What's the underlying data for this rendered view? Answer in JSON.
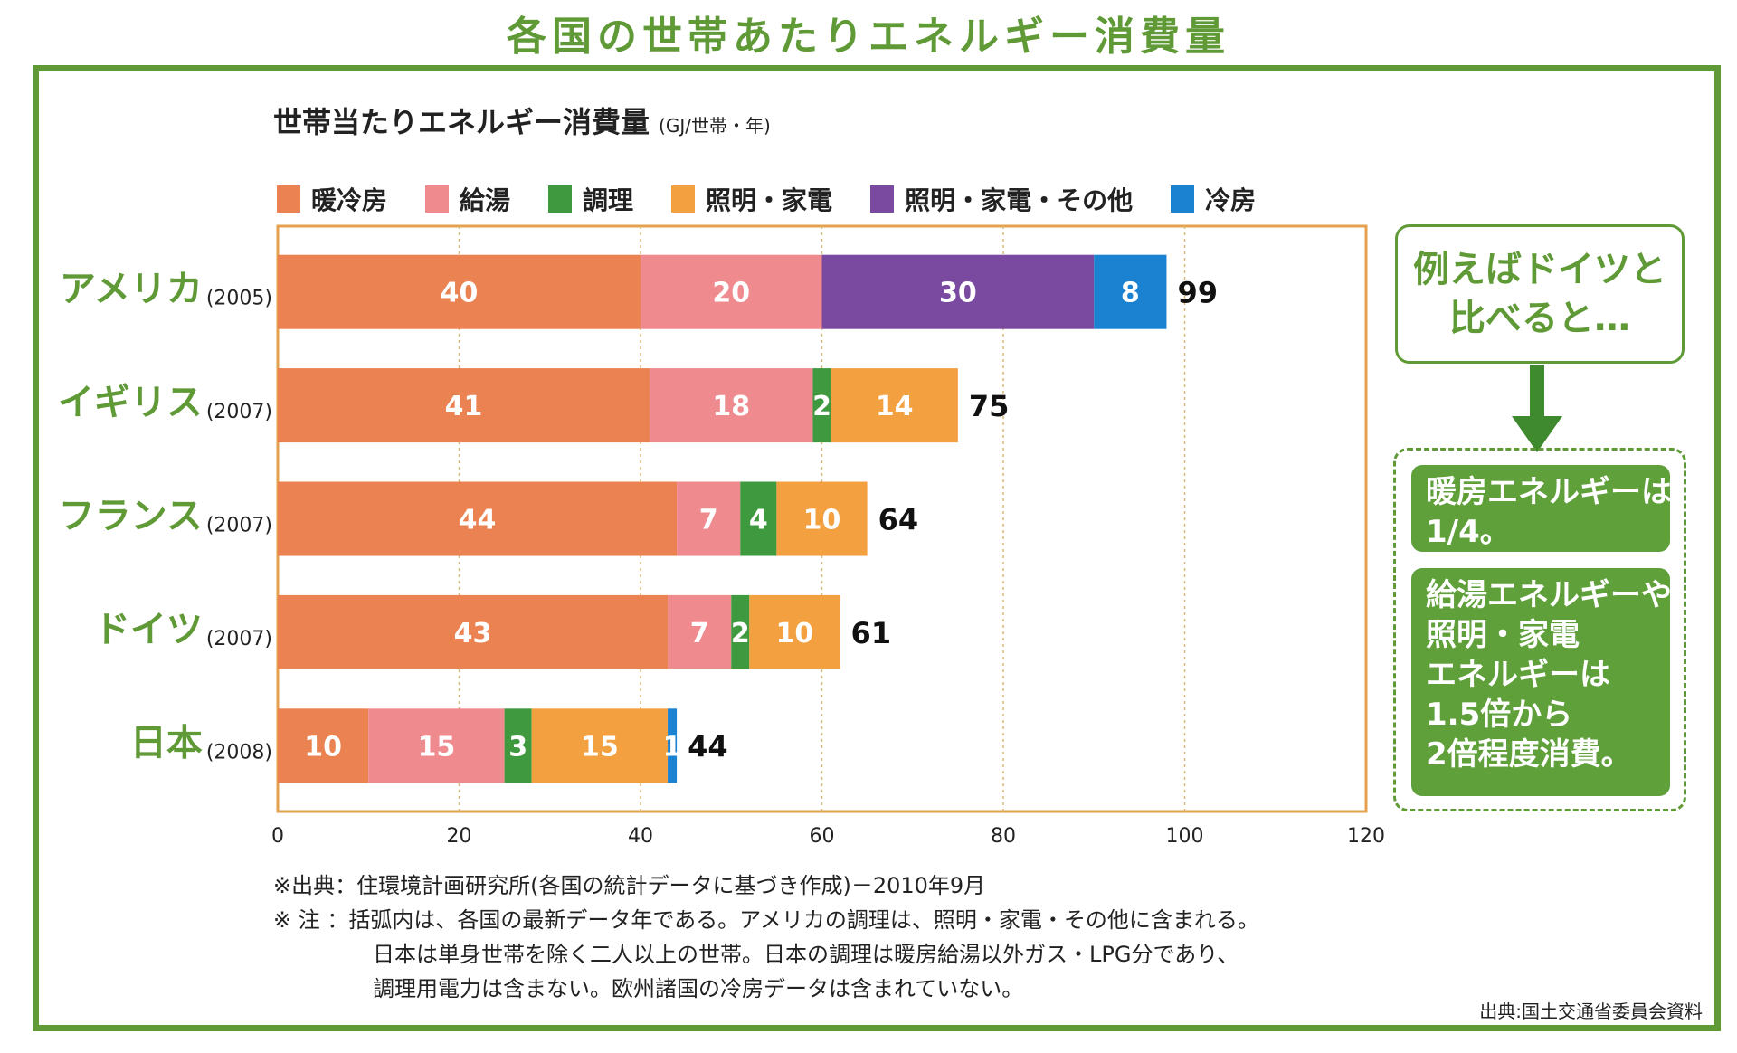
{
  "page_title": "各国の世帯あたりエネルギー消費量",
  "chart_title": "世帯当たりエネルギー消費量",
  "chart_unit": "(GJ/世帯・年)",
  "legend": [
    {
      "label": "暖冷房",
      "color": "#ea8251"
    },
    {
      "label": "給湯",
      "color": "#ef8a8f"
    },
    {
      "label": "調理",
      "color": "#3f9a3f"
    },
    {
      "label": "照明・家電",
      "color": "#f3a041"
    },
    {
      "label": "照明・家電・その他",
      "color": "#7a4aa0"
    },
    {
      "label": "冷房",
      "color": "#1a82d0"
    }
  ],
  "chart_data": {
    "type": "bar",
    "orientation": "horizontal",
    "stacked": true,
    "categories": [
      "アメリカ",
      "イギリス",
      "フランス",
      "ドイツ",
      "日本"
    ],
    "category_years": [
      "(2005)",
      "(2007)",
      "(2007)",
      "(2007)",
      "(2008)"
    ],
    "totals": [
      99,
      75,
      64,
      61,
      44
    ],
    "xlim": [
      0,
      120
    ],
    "xticks": [
      0,
      20,
      40,
      60,
      80,
      100,
      120
    ],
    "grid": true,
    "series": [
      {
        "name": "暖冷房",
        "values": [
          40,
          41,
          44,
          43,
          10
        ]
      },
      {
        "name": "給湯",
        "values": [
          20,
          18,
          7,
          7,
          15
        ]
      },
      {
        "name": "調理",
        "values": [
          null,
          2,
          4,
          2,
          3
        ]
      },
      {
        "name": "照明・家電",
        "values": [
          null,
          14,
          10,
          10,
          15
        ]
      },
      {
        "name": "照明・家電・その他",
        "values": [
          30,
          null,
          null,
          null,
          null
        ]
      },
      {
        "name": "冷房",
        "values": [
          8,
          null,
          null,
          null,
          1
        ]
      }
    ]
  },
  "callout": {
    "lines": [
      "例えばドイツと",
      "比べると…"
    ]
  },
  "cards": [
    {
      "lines": [
        "暖房エネルギーは",
        "1/4。"
      ]
    },
    {
      "lines": [
        "給湯エネルギーや",
        "照明・家電",
        "エネルギーは",
        "1.5倍から",
        "2倍程度消費。"
      ]
    }
  ],
  "notes": [
    "※出典：住環境計画研究所(各国の統計データに基づき作成)－2010年9月",
    "※ 注 ：括弧内は、各国の最新データ年である。アメリカの調理は、照明・家電・その他に含まれる。",
    "日本は単身世帯を除く二人以上の世帯。日本の調理は暖房給湯以外ガス・LPG分であり、",
    "調理用電力は含まない。欧州諸国の冷房データは含まれていない。"
  ],
  "source": "出典:国土交通省委員会資料"
}
